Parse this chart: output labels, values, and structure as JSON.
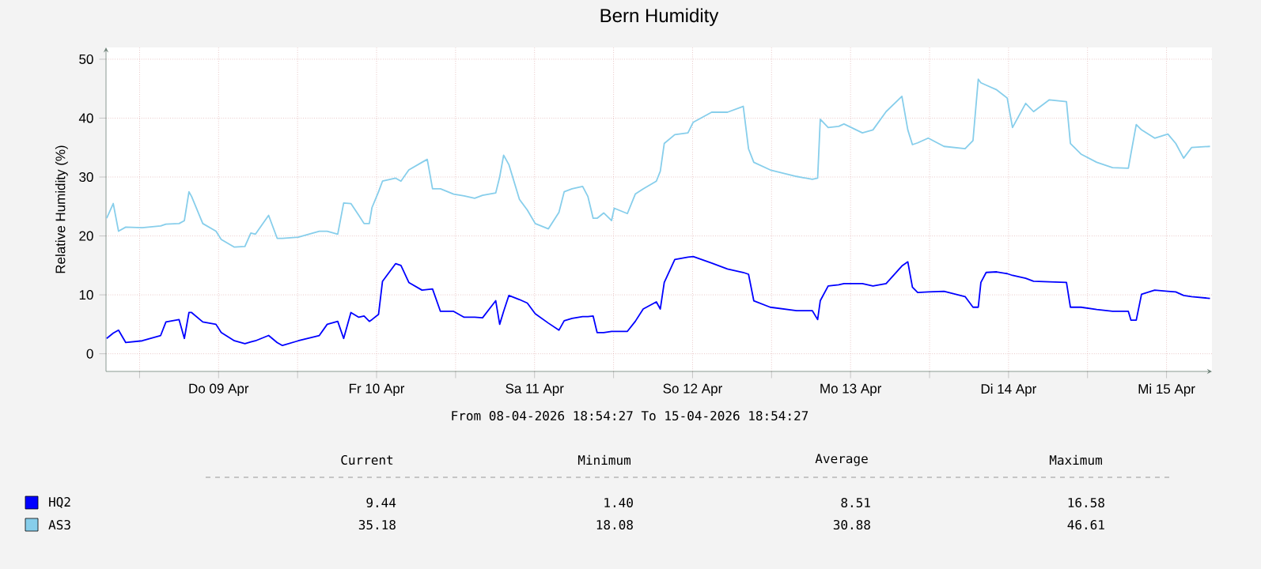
{
  "chart_data": {
    "type": "line",
    "title": "Bern Humidity",
    "ylabel": "Relative Humidity (%)",
    "x": [
      "2026-04-08T19:00",
      "2026-04-08T20:00",
      "2026-04-08T20:48",
      "2026-04-08T21:54",
      "2026-04-09T00:24",
      "2026-04-09T03:12",
      "2026-04-09T04:00",
      "2026-04-09T06:00",
      "2026-04-09T06:48",
      "2026-04-09T07:30",
      "2026-04-09T07:54",
      "2026-04-09T09:36",
      "2026-04-09T11:36",
      "2026-04-09T12:24",
      "2026-04-09T14:24",
      "2026-04-09T16:00",
      "2026-04-09T16:54",
      "2026-04-09T17:36",
      "2026-04-09T19:36",
      "2026-04-09T20:54",
      "2026-04-09T21:42",
      "2026-04-10T00:06",
      "2026-04-10T03:18",
      "2026-04-10T04:30",
      "2026-04-10T06:06",
      "2026-04-10T07:00",
      "2026-04-10T08:06",
      "2026-04-10T09:18",
      "2026-04-10T10:06",
      "2026-04-10T10:54",
      "2026-04-10T11:18",
      "2026-04-10T12:18",
      "2026-04-10T12:54",
      "2026-04-10T14:54",
      "2026-04-10T15:42",
      "2026-04-10T16:54",
      "2026-04-10T18:54",
      "2026-04-10T19:42",
      "2026-04-10T20:30",
      "2026-04-10T21:42",
      "2026-04-10T23:42",
      "2026-04-11T01:18",
      "2026-04-11T02:54",
      "2026-04-11T04:06",
      "2026-04-11T06:06",
      "2026-04-11T06:42",
      "2026-04-11T07:18",
      "2026-04-11T08:06",
      "2026-04-11T09:42",
      "2026-04-11T10:54",
      "2026-04-11T12:06",
      "2026-04-11T14:06",
      "2026-04-11T15:42",
      "2026-04-11T16:30",
      "2026-04-11T17:42",
      "2026-04-11T19:18",
      "2026-04-11T20:06",
      "2026-04-11T20:54",
      "2026-04-11T21:30",
      "2026-04-11T22:30",
      "2026-04-11T23:42",
      "2026-04-12T00:06",
      "2026-04-12T02:06",
      "2026-04-12T03:18",
      "2026-04-12T04:30",
      "2026-04-12T06:30",
      "2026-04-12T07:06",
      "2026-04-12T07:42",
      "2026-04-12T09:18",
      "2026-04-12T11:18",
      "2026-04-12T12:06",
      "2026-04-12T14:54",
      "2026-04-12T17:18",
      "2026-04-12T19:42",
      "2026-04-12T20:30",
      "2026-04-12T21:18",
      "2026-04-12T23:48",
      "2026-04-13T03:48",
      "2026-04-13T06:12",
      "2026-04-13T07:00",
      "2026-04-13T07:24",
      "2026-04-13T08:36",
      "2026-04-13T10:12",
      "2026-04-13T11:00",
      "2026-04-13T13:48",
      "2026-04-13T15:24",
      "2026-04-13T17:24",
      "2026-04-13T19:48",
      "2026-04-13T20:42",
      "2026-04-13T21:24",
      "2026-04-13T22:12",
      "2026-04-13T23:48",
      "2026-04-14T02:12",
      "2026-04-14T05:24",
      "2026-04-14T06:36",
      "2026-04-14T07:24",
      "2026-04-14T07:48",
      "2026-04-14T08:36",
      "2026-04-14T10:12",
      "2026-04-14T11:48",
      "2026-04-14T12:36",
      "2026-04-14T14:36",
      "2026-04-14T15:48",
      "2026-04-14T18:12",
      "2026-04-14T20:48",
      "2026-04-14T21:24",
      "2026-04-14T23:00",
      "2026-04-15T01:24",
      "2026-04-15T03:48",
      "2026-04-15T06:12",
      "2026-04-15T06:36",
      "2026-04-15T07:24",
      "2026-04-15T08:12",
      "2026-04-15T10:12",
      "2026-04-15T12:12",
      "2026-04-15T13:24",
      "2026-04-15T14:36",
      "2026-04-15T15:48",
      "2026-04-15T18:36"
    ],
    "series": [
      {
        "name": "HQ2",
        "color": "#0000ff",
        "values": [
          2.6,
          3.5,
          4.0,
          1.9,
          2.2,
          3.1,
          5.4,
          5.8,
          2.6,
          7.0,
          7.0,
          5.4,
          5.0,
          3.6,
          2.2,
          1.7,
          2.0,
          2.2,
          3.1,
          1.9,
          1.4,
          2.2,
          3.1,
          5.0,
          5.5,
          2.6,
          7.0,
          6.2,
          6.4,
          5.5,
          5.8,
          6.7,
          12.3,
          15.3,
          15.0,
          12.1,
          10.8,
          10.9,
          11.0,
          7.2,
          7.2,
          6.2,
          6.2,
          6.1,
          9.0,
          5.0,
          7.2,
          9.9,
          9.2,
          8.6,
          6.8,
          5.2,
          4.0,
          5.6,
          6.0,
          6.3,
          6.3,
          6.4,
          3.6,
          3.6,
          3.8,
          3.8,
          3.8,
          5.5,
          7.6,
          8.8,
          7.6,
          12.1,
          16.0,
          16.4,
          16.5,
          15.4,
          14.4,
          13.8,
          13.5,
          9.0,
          7.9,
          7.3,
          7.3,
          5.8,
          9.0,
          11.5,
          11.7,
          11.9,
          11.9,
          11.5,
          11.9,
          14.9,
          15.6,
          11.3,
          10.4,
          10.5,
          10.6,
          9.7,
          7.9,
          7.9,
          12.1,
          13.8,
          13.9,
          13.6,
          13.3,
          12.8,
          12.3,
          12.2,
          12.1,
          7.9,
          7.9,
          7.5,
          7.2,
          7.2,
          5.7,
          5.7,
          10.1,
          10.8,
          10.6,
          10.5,
          9.9,
          9.7,
          9.4
        ]
      },
      {
        "name": "AS3",
        "color": "#87ceeb",
        "values": [
          23.0,
          25.5,
          20.8,
          21.5,
          21.4,
          21.7,
          22.0,
          22.1,
          22.6,
          27.5,
          26.7,
          22.1,
          20.8,
          19.4,
          18.1,
          18.2,
          20.5,
          20.3,
          23.5,
          19.6,
          19.6,
          19.8,
          20.8,
          20.8,
          20.3,
          25.6,
          25.5,
          23.5,
          22.1,
          22.1,
          24.8,
          27.5,
          29.3,
          29.8,
          29.3,
          31.2,
          32.5,
          33.0,
          28.0,
          28.0,
          27.1,
          26.8,
          26.4,
          26.9,
          27.3,
          30.0,
          33.7,
          32.1,
          26.2,
          24.4,
          22.1,
          21.2,
          24.0,
          27.5,
          28.0,
          28.4,
          26.7,
          23.0,
          23.0,
          23.9,
          22.6,
          24.7,
          23.8,
          27.1,
          28.0,
          29.3,
          31.0,
          35.7,
          37.2,
          37.5,
          39.3,
          41.0,
          41.0,
          42.0,
          34.8,
          32.5,
          31.2,
          30.1,
          29.6,
          29.8,
          39.8,
          38.4,
          38.6,
          39.0,
          37.5,
          38.0,
          41.1,
          43.7,
          38.0,
          35.5,
          35.8,
          36.6,
          35.2,
          34.8,
          36.2,
          46.6,
          46.0,
          45.6,
          44.8,
          43.4,
          38.4,
          42.5,
          41.1,
          43.1,
          42.8,
          35.7,
          33.9,
          32.5,
          31.6,
          31.5,
          34.0,
          38.9,
          38.0,
          36.6,
          37.3,
          35.7,
          33.2,
          35.0,
          35.2
        ]
      }
    ],
    "xlim": [
      "2026-04-08T18:54",
      "2026-04-15T18:54"
    ],
    "xticks": [
      {
        "value": "2026-04-09T00:00",
        "label": null
      },
      {
        "value": "2026-04-09T12:00",
        "label": "Do 09 Apr"
      },
      {
        "value": "2026-04-10T00:00",
        "label": null
      },
      {
        "value": "2026-04-10T12:00",
        "label": "Fr 10 Apr"
      },
      {
        "value": "2026-04-11T00:00",
        "label": null
      },
      {
        "value": "2026-04-11T12:00",
        "label": "Sa 11 Apr"
      },
      {
        "value": "2026-04-12T00:00",
        "label": null
      },
      {
        "value": "2026-04-12T12:00",
        "label": "So 12 Apr"
      },
      {
        "value": "2026-04-13T00:00",
        "label": null
      },
      {
        "value": "2026-04-13T12:00",
        "label": "Mo 13 Apr"
      },
      {
        "value": "2026-04-14T00:00",
        "label": null
      },
      {
        "value": "2026-04-14T12:00",
        "label": "Di 14 Apr"
      },
      {
        "value": "2026-04-15T00:00",
        "label": null
      },
      {
        "value": "2026-04-15T12:00",
        "label": "Mi 15 Apr"
      }
    ],
    "ylim": [
      -3,
      52
    ],
    "yticks": [
      0,
      10,
      20,
      30,
      40,
      50
    ],
    "grid": true,
    "legend": "bottom left",
    "annotations": [
      "From 08-04-2026 18:54:27 To 15-04-2026 18:54:27",
      "Current",
      "Minimum",
      "Average",
      "Maximum",
      "9.44",
      "1.40",
      "8.51",
      "16.58",
      "35.18",
      "18.08",
      "30.88",
      "46.61"
    ]
  }
}
